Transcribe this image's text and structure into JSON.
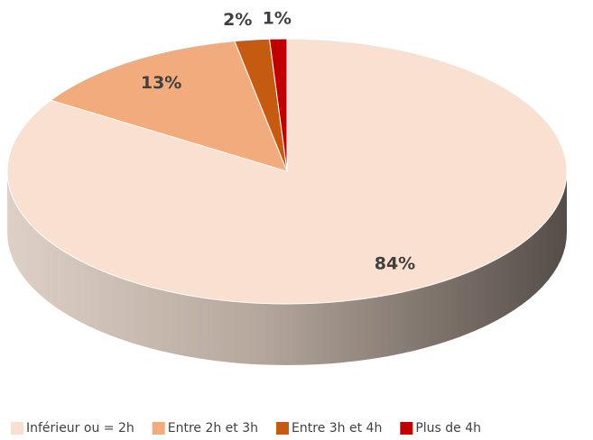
{
  "chart_data": {
    "type": "pie",
    "categories": [
      "Inférieur ou = 2h",
      "Entre 2h et 3h",
      "Entre 3h et 4h",
      "Plus de 4h"
    ],
    "values": [
      84,
      13,
      2,
      1
    ],
    "value_labels": [
      "84%",
      "13%",
      "2%",
      "1%"
    ],
    "colors": [
      "#f9e0d0",
      "#f2ab7c",
      "#c55a11",
      "#c00000"
    ],
    "legend": "bottom"
  }
}
